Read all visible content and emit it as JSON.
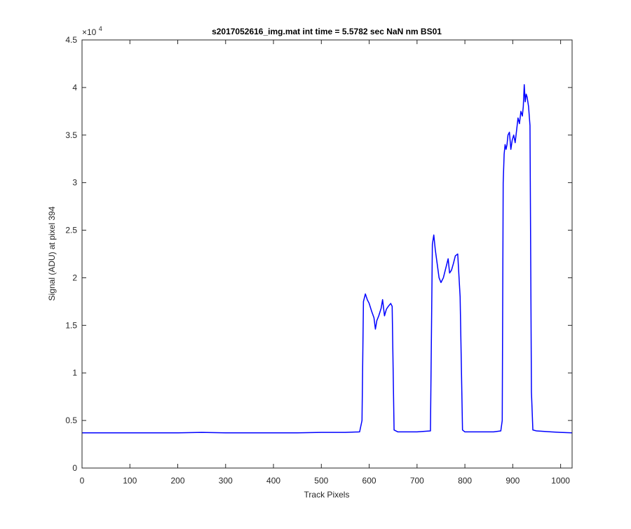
{
  "chart_data": {
    "type": "line",
    "title": "s2017052616_img.mat int time = 5.5782 sec  NaN nm BS01",
    "xlabel": "Track Pixels",
    "ylabel": "Signal (ADU) at pixel 394",
    "y_exponent_base": "×10",
    "y_exponent_power": "4",
    "xlim": [
      0,
      1024
    ],
    "ylim": [
      0,
      45000
    ],
    "grid": false,
    "xticks": [
      0,
      100,
      200,
      300,
      400,
      500,
      600,
      700,
      800,
      900,
      1000
    ],
    "xtick_labels": [
      "0",
      "100",
      "200",
      "300",
      "400",
      "500",
      "600",
      "700",
      "800",
      "900",
      "1000"
    ],
    "yticks": [
      0,
      5000,
      10000,
      15000,
      20000,
      25000,
      30000,
      35000,
      40000,
      45000
    ],
    "ytick_labels": [
      "0",
      "0.5",
      "1",
      "1.5",
      "2",
      "2.5",
      "3",
      "3.5",
      "4",
      "4.5"
    ],
    "line_color": "#0000ff",
    "series": [
      {
        "x": [
          0,
          50,
          100,
          150,
          200,
          250,
          300,
          350,
          400,
          450,
          500,
          550,
          580,
          585,
          588,
          592,
          596,
          600,
          605,
          610,
          613,
          616,
          620,
          625,
          628,
          632,
          636,
          640,
          645,
          648,
          652,
          660,
          700,
          728,
          732,
          735,
          738,
          742,
          746,
          750,
          755,
          760,
          765,
          768,
          772,
          776,
          780,
          785,
          790,
          795,
          800,
          830,
          860,
          875,
          878,
          880,
          882,
          884,
          886,
          888,
          890,
          893,
          896,
          899,
          902,
          905,
          908,
          911,
          914,
          917,
          920,
          922,
          924,
          926,
          928,
          930,
          933,
          936,
          939,
          942,
          950,
          980,
          1000,
          1024
        ],
        "y": [
          3700,
          3700,
          3700,
          3700,
          3700,
          3750,
          3700,
          3700,
          3700,
          3700,
          3750,
          3750,
          3800,
          5000,
          17500,
          18300,
          17700,
          17300,
          16500,
          15800,
          14600,
          15500,
          16000,
          16800,
          17700,
          16000,
          16700,
          17000,
          17300,
          17000,
          4000,
          3800,
          3800,
          3900,
          23500,
          24500,
          23000,
          21500,
          20000,
          19500,
          20000,
          21000,
          22000,
          20500,
          20800,
          21500,
          22300,
          22500,
          18000,
          4000,
          3800,
          3800,
          3800,
          3900,
          5000,
          30000,
          33000,
          34000,
          33500,
          34000,
          35000,
          35300,
          33500,
          34500,
          35000,
          34200,
          35500,
          36800,
          36200,
          37500,
          37000,
          38000,
          40300,
          38500,
          39300,
          39000,
          38000,
          36000,
          8000,
          4000,
          3900,
          3800,
          3750,
          3700
        ]
      }
    ]
  }
}
